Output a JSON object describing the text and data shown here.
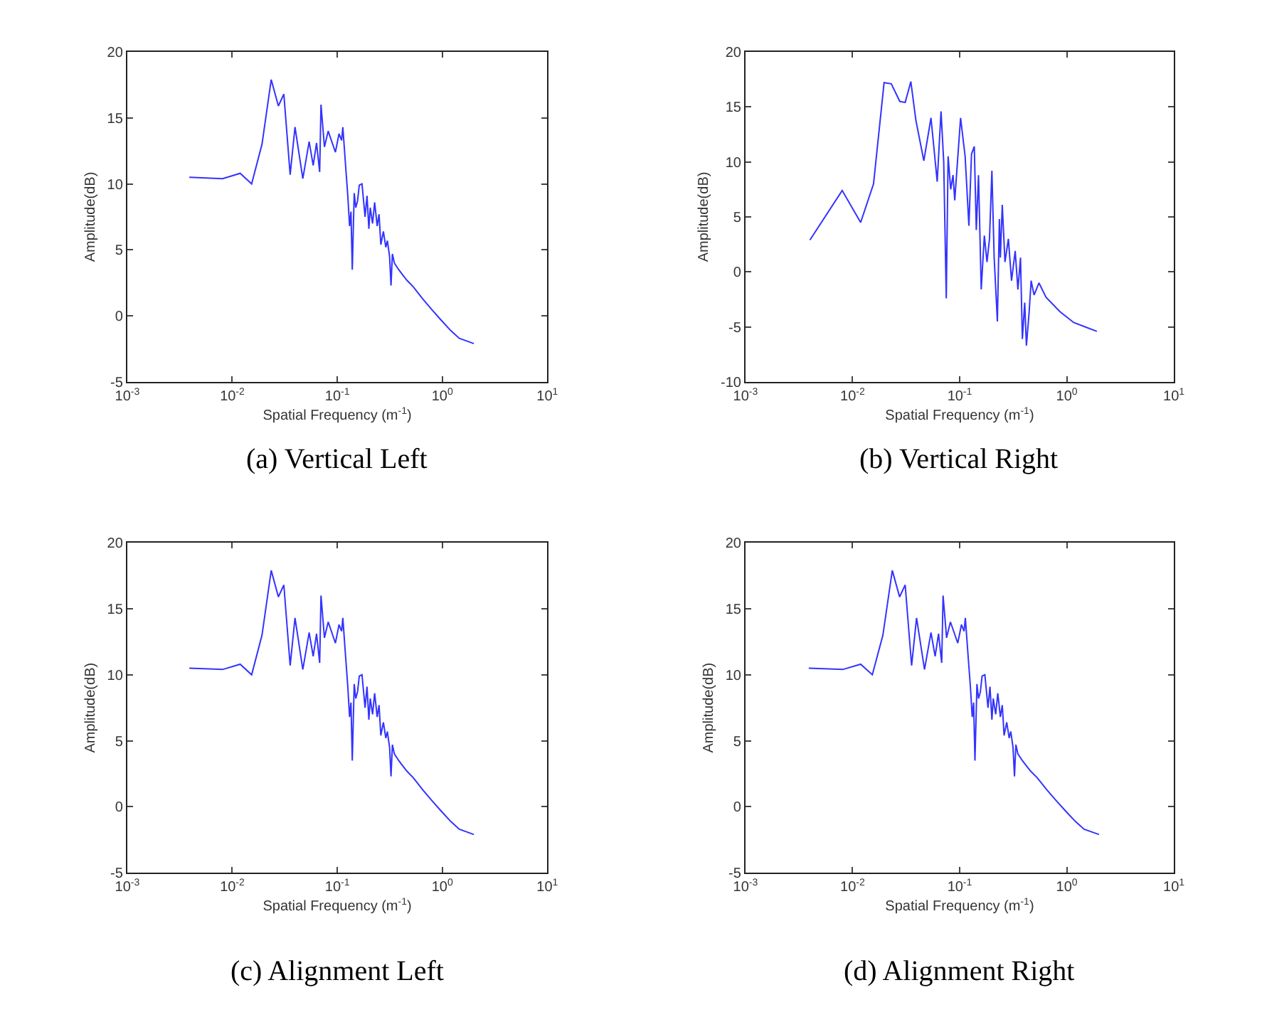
{
  "chart_data": [
    {
      "type": "line",
      "title": "(a) Vertical Left",
      "xlabel": "Spatial Frequency (m$^{-1}$)",
      "ylabel": "Amplitude(dB)",
      "log": "x",
      "xlim": [
        0.001,
        10
      ],
      "ylim": [
        -5,
        20
      ],
      "xticks": [
        {
          "value": 0.001,
          "label": "10$^{-3}$"
        },
        {
          "value": 0.01,
          "label": "10$^{-2}$"
        },
        {
          "value": 0.1,
          "label": "10$^{-1}$"
        },
        {
          "value": 1,
          "label": "10$^{0}$"
        },
        {
          "value": 10,
          "label": "10$^{1}$"
        }
      ],
      "yticks": [
        -5,
        0,
        5,
        10,
        15,
        20
      ],
      "series": [
        {
          "color": "#3333ff",
          "x": [
            0.0039,
            0.0081,
            0.0119,
            0.0153,
            0.0192,
            0.0235,
            0.0275,
            0.031,
            0.0356,
            0.0396,
            0.047,
            0.054,
            0.059,
            0.0635,
            0.068,
            0.07,
            0.0755,
            0.082,
            0.096,
            0.104,
            0.11,
            0.113,
            0.121,
            0.126,
            0.131,
            0.135,
            0.139,
            0.145,
            0.15,
            0.156,
            0.162,
            0.172,
            0.184,
            0.192,
            0.2,
            0.206,
            0.217,
            0.227,
            0.24,
            0.25,
            0.26,
            0.275,
            0.29,
            0.3,
            0.315,
            0.325,
            0.335,
            0.35,
            0.385,
            0.42,
            0.46,
            0.53,
            0.65,
            0.79,
            0.97,
            1.2,
            1.45,
            2.0
          ],
          "values": [
            10.5,
            10.4,
            10.8,
            10.0,
            13.0,
            17.9,
            15.9,
            16.8,
            10.7,
            14.3,
            10.4,
            13.2,
            11.4,
            13.1,
            10.9,
            16.0,
            12.8,
            14.0,
            12.4,
            13.8,
            13.3,
            14.3,
            11.0,
            9.1,
            6.8,
            7.9,
            3.5,
            9.3,
            8.2,
            8.7,
            9.9,
            10.0,
            7.5,
            9.1,
            6.6,
            8.2,
            7.0,
            8.6,
            6.8,
            7.7,
            5.4,
            6.4,
            5.2,
            5.7,
            4.5,
            2.3,
            4.7,
            4.0,
            3.5,
            3.1,
            2.7,
            2.2,
            1.3,
            0.5,
            -0.3,
            -1.1,
            -1.7,
            -2.1
          ]
        }
      ]
    },
    {
      "type": "line",
      "title": "(b) Vertical Right",
      "xlabel": "Spatial Frequency (m$^{-1}$)",
      "ylabel": "Amplitude(dB)",
      "log": "x",
      "xlim": [
        0.001,
        10
      ],
      "ylim": [
        -10,
        20
      ],
      "xticks": [
        {
          "value": 0.001,
          "label": "10$^{-3}$"
        },
        {
          "value": 0.01,
          "label": "10$^{-2}$"
        },
        {
          "value": 0.1,
          "label": "10$^{-1}$"
        },
        {
          "value": 1,
          "label": "10$^{0}$"
        },
        {
          "value": 10,
          "label": "10$^{1}$"
        }
      ],
      "yticks": [
        -10,
        -5,
        0,
        5,
        10,
        15,
        20
      ],
      "series": [
        {
          "color": "#3333ff",
          "x": [
            0.004,
            0.008,
            0.0119,
            0.0157,
            0.0197,
            0.023,
            0.0276,
            0.031,
            0.035,
            0.039,
            0.0463,
            0.054,
            0.0617,
            0.067,
            0.071,
            0.075,
            0.078,
            0.0825,
            0.0867,
            0.09,
            0.102,
            0.1125,
            0.122,
            0.129,
            0.137,
            0.143,
            0.15,
            0.159,
            0.17,
            0.18,
            0.19,
            0.2,
            0.21,
            0.225,
            0.235,
            0.24,
            0.25,
            0.265,
            0.285,
            0.305,
            0.33,
            0.35,
            0.37,
            0.385,
            0.405,
            0.42,
            0.445,
            0.465,
            0.495,
            0.55,
            0.64,
            0.86,
            1.16,
            1.91
          ],
          "values": [
            2.9,
            7.4,
            4.5,
            8.0,
            17.2,
            17.1,
            15.5,
            15.4,
            17.3,
            13.8,
            10.1,
            14.0,
            8.2,
            14.6,
            10.0,
            -2.4,
            10.5,
            7.5,
            8.8,
            6.5,
            14.0,
            10.5,
            4.2,
            10.7,
            11.4,
            3.8,
            8.8,
            -1.6,
            3.3,
            0.9,
            3.0,
            9.2,
            1.3,
            -4.5,
            4.8,
            1.3,
            6.1,
            0.9,
            3.0,
            -0.8,
            1.9,
            -1.6,
            1.3,
            -6.1,
            -2.8,
            -6.7,
            -3.7,
            -0.8,
            -2.1,
            -1.0,
            -2.3,
            -3.6,
            -4.6,
            -5.4
          ]
        }
      ]
    },
    {
      "type": "line",
      "title": "(c) Alignment Left",
      "xlabel": "Spatial Frequency (m$^{-1}$)",
      "ylabel": "Amplitude(dB)",
      "log": "x",
      "xlim": [
        0.001,
        10
      ],
      "ylim": [
        -5,
        20
      ],
      "xticks": [
        {
          "value": 0.001,
          "label": "10$^{-3}$"
        },
        {
          "value": 0.01,
          "label": "10$^{-2}$"
        },
        {
          "value": 0.1,
          "label": "10$^{-1}$"
        },
        {
          "value": 1,
          "label": "10$^{0}$"
        },
        {
          "value": 10,
          "label": "10$^{1}$"
        }
      ],
      "yticks": [
        -5,
        0,
        5,
        10,
        15,
        20
      ],
      "series": [
        {
          "color": "#3333ff",
          "x": [
            0.0039,
            0.0081,
            0.0119,
            0.0153,
            0.0192,
            0.0235,
            0.0275,
            0.031,
            0.0356,
            0.0396,
            0.047,
            0.054,
            0.059,
            0.0635,
            0.068,
            0.07,
            0.0755,
            0.082,
            0.096,
            0.104,
            0.11,
            0.113,
            0.121,
            0.126,
            0.131,
            0.135,
            0.139,
            0.145,
            0.15,
            0.156,
            0.162,
            0.172,
            0.184,
            0.192,
            0.2,
            0.206,
            0.217,
            0.227,
            0.24,
            0.25,
            0.26,
            0.275,
            0.29,
            0.3,
            0.315,
            0.325,
            0.335,
            0.35,
            0.385,
            0.42,
            0.46,
            0.53,
            0.65,
            0.79,
            0.97,
            1.2,
            1.45,
            2.0
          ],
          "values": [
            10.5,
            10.4,
            10.8,
            10.0,
            13.0,
            17.9,
            15.9,
            16.8,
            10.7,
            14.3,
            10.4,
            13.2,
            11.4,
            13.1,
            10.9,
            16.0,
            12.8,
            14.0,
            12.4,
            13.8,
            13.3,
            14.3,
            11.0,
            9.1,
            6.8,
            7.9,
            3.5,
            9.3,
            8.2,
            8.7,
            9.9,
            10.0,
            7.5,
            9.1,
            6.6,
            8.2,
            7.0,
            8.6,
            6.8,
            7.7,
            5.4,
            6.4,
            5.2,
            5.7,
            4.5,
            2.3,
            4.7,
            4.0,
            3.5,
            3.1,
            2.7,
            2.2,
            1.3,
            0.5,
            -0.3,
            -1.1,
            -1.7,
            -2.1
          ]
        }
      ]
    },
    {
      "type": "line",
      "title": "(d) Alignment Right",
      "xlabel": "Spatial Frequency (m$^{-1}$)",
      "ylabel": "Amplitude(dB)",
      "log": "x",
      "xlim": [
        0.001,
        10
      ],
      "ylim": [
        -5,
        20
      ],
      "xticks": [
        {
          "value": 0.001,
          "label": "10$^{-3}$"
        },
        {
          "value": 0.01,
          "label": "10$^{-2}$"
        },
        {
          "value": 0.1,
          "label": "10$^{-1}$"
        },
        {
          "value": 1,
          "label": "10$^{0}$"
        },
        {
          "value": 10,
          "label": "10$^{1}$"
        }
      ],
      "yticks": [
        -5,
        0,
        5,
        10,
        15,
        20
      ],
      "series": [
        {
          "color": "#3333ff",
          "x": [
            0.0039,
            0.0081,
            0.0119,
            0.0153,
            0.0192,
            0.0235,
            0.0275,
            0.031,
            0.0356,
            0.0396,
            0.047,
            0.054,
            0.059,
            0.0635,
            0.068,
            0.07,
            0.0755,
            0.082,
            0.096,
            0.104,
            0.11,
            0.113,
            0.121,
            0.126,
            0.131,
            0.135,
            0.139,
            0.145,
            0.15,
            0.156,
            0.162,
            0.172,
            0.184,
            0.192,
            0.2,
            0.206,
            0.217,
            0.227,
            0.24,
            0.25,
            0.26,
            0.275,
            0.29,
            0.3,
            0.315,
            0.325,
            0.335,
            0.35,
            0.385,
            0.42,
            0.46,
            0.53,
            0.65,
            0.79,
            0.97,
            1.2,
            1.45,
            2.0
          ],
          "values": [
            10.5,
            10.4,
            10.8,
            10.0,
            13.0,
            17.9,
            15.9,
            16.8,
            10.7,
            14.3,
            10.4,
            13.2,
            11.4,
            13.1,
            10.9,
            16.0,
            12.8,
            14.0,
            12.4,
            13.8,
            13.3,
            14.3,
            11.0,
            9.1,
            6.8,
            7.9,
            3.5,
            9.3,
            8.2,
            8.7,
            9.9,
            10.0,
            7.5,
            9.1,
            6.6,
            8.2,
            7.0,
            8.6,
            6.8,
            7.7,
            5.4,
            6.4,
            5.2,
            5.7,
            4.5,
            2.3,
            4.7,
            4.0,
            3.5,
            3.1,
            2.7,
            2.2,
            1.3,
            0.5,
            -0.3,
            -1.1,
            -1.7,
            -2.1
          ]
        }
      ]
    }
  ]
}
